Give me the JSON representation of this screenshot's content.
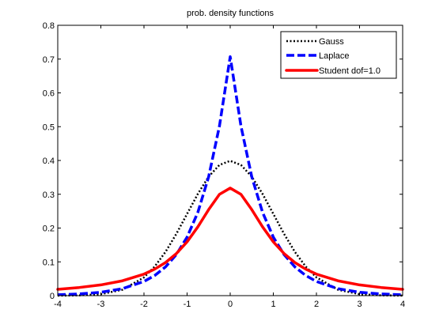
{
  "chart_data": {
    "type": "line",
    "title": "prob. density functions",
    "xlabel": "",
    "ylabel": "",
    "xlim": [
      -4,
      4
    ],
    "ylim": [
      0,
      0.8
    ],
    "x_ticks": [
      -4,
      -3,
      -2,
      -1,
      0,
      1,
      2,
      3,
      4
    ],
    "y_ticks": [
      0,
      0.1,
      0.2,
      0.3,
      0.4,
      0.5,
      0.6,
      0.7,
      0.8
    ],
    "x_tick_labels": [
      "-4",
      "-3",
      "-2",
      "-1",
      "0",
      "1",
      "2",
      "3",
      "4"
    ],
    "y_tick_labels": [
      "0",
      "0.1",
      "0.2",
      "0.3",
      "0.4",
      "0.5",
      "0.6",
      "0.7",
      "0.8"
    ],
    "grid": false,
    "legend_position": "top-right",
    "x": [
      -4,
      -3.5,
      -3,
      -2.5,
      -2,
      -1.75,
      -1.5,
      -1.25,
      -1,
      -0.75,
      -0.5,
      -0.25,
      0,
      0.25,
      0.5,
      0.75,
      1,
      1.25,
      1.5,
      1.75,
      2,
      2.5,
      3,
      3.5,
      4
    ],
    "series": [
      {
        "name": "Gauss",
        "color": "#000000",
        "line_style": "dotted",
        "values": [
          0.0001,
          0.0009,
          0.0044,
          0.0175,
          0.054,
          0.0863,
          0.1295,
          0.1826,
          0.242,
          0.3011,
          0.3521,
          0.3867,
          0.3989,
          0.3867,
          0.3521,
          0.3011,
          0.242,
          0.1826,
          0.1295,
          0.0863,
          0.054,
          0.0175,
          0.0044,
          0.0009,
          0.0001
        ]
      },
      {
        "name": "Laplace",
        "color": "#0000ff",
        "line_style": "dashed",
        "values": [
          0.0025,
          0.005,
          0.01,
          0.0206,
          0.0419,
          0.0597,
          0.0851,
          0.1214,
          0.1731,
          0.2467,
          0.3518,
          0.5015,
          0.7071,
          0.5015,
          0.3518,
          0.2467,
          0.1731,
          0.1214,
          0.0851,
          0.0597,
          0.0419,
          0.0206,
          0.01,
          0.005,
          0.0025
        ]
      },
      {
        "name": "Student dof=1.0",
        "color": "#ff0000",
        "line_style": "solid",
        "values": [
          0.0187,
          0.0241,
          0.0318,
          0.0439,
          0.0637,
          0.0785,
          0.0979,
          0.1243,
          0.1592,
          0.2037,
          0.2546,
          0.2996,
          0.3183,
          0.2996,
          0.2546,
          0.2037,
          0.1592,
          0.1243,
          0.0979,
          0.0785,
          0.0637,
          0.0439,
          0.0318,
          0.0241,
          0.0187
        ]
      }
    ]
  }
}
